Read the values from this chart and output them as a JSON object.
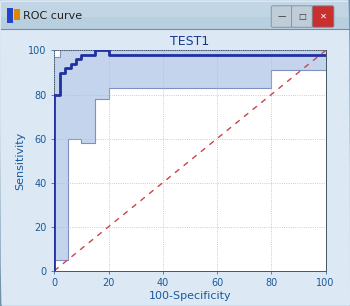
{
  "title": "TEST1",
  "xlabel": "100-Specificity",
  "ylabel": "Sensitivity",
  "xlim": [
    0,
    100
  ],
  "ylim": [
    0,
    100
  ],
  "xticks": [
    0,
    20,
    40,
    60,
    80,
    100
  ],
  "yticks": [
    0,
    20,
    40,
    60,
    80,
    100
  ],
  "outer_bg": "#c8d8e8",
  "inner_bg": "#dce8f4",
  "plot_bg": "#ffffff",
  "titlebar_bg": "#b8cfe0",
  "grid_color": "#a8c0d8",
  "roc_color": "#2030a0",
  "roc_linewidth": 2.0,
  "ci_line_color": "#8090c0",
  "ci_fill_color": "#c4d4ec",
  "diag_color": "#cc4444",
  "diag_linewidth": 1.0,
  "title_color": "#1a3a8a",
  "axis_label_color": "#1a5a9a",
  "tick_color": "#1a5a9a",
  "roc_x": [
    0,
    0,
    2,
    2,
    4,
    4,
    6,
    6,
    8,
    8,
    10,
    10,
    15,
    15,
    20,
    20,
    100
  ],
  "roc_y": [
    0,
    80,
    80,
    90,
    90,
    92,
    92,
    94,
    94,
    96,
    96,
    98,
    98,
    100,
    100,
    98,
    98
  ],
  "ci_upper_x": [
    0,
    0,
    2,
    2,
    100
  ],
  "ci_upper_y": [
    0,
    97,
    97,
    100,
    100
  ],
  "ci_lower_x": [
    0,
    0,
    5,
    5,
    10,
    10,
    15,
    15,
    20,
    20,
    80,
    80,
    100
  ],
  "ci_lower_y": [
    0,
    5,
    5,
    60,
    60,
    58,
    58,
    78,
    78,
    83,
    83,
    91,
    91
  ]
}
